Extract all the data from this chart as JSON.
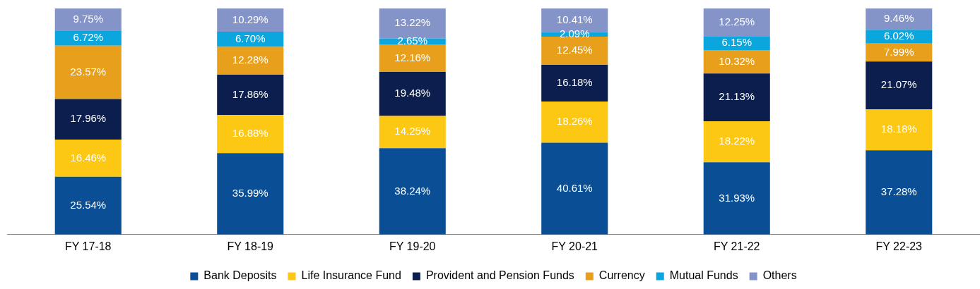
{
  "chart_data": {
    "type": "bar",
    "stacked": true,
    "legend": "bottom",
    "grid": false,
    "categories": [
      "FY 17-18",
      "FY 18-19",
      "FY 19-20",
      "FY 20-21",
      "FY 21-22",
      "FY 22-23"
    ],
    "series": [
      {
        "name": "Bank Deposits",
        "color": "#0a4f96",
        "values": [
          25.54,
          35.99,
          38.24,
          40.61,
          31.93,
          37.28
        ],
        "value_labels": [
          "25.54%",
          "35.99%",
          "38.24%",
          "40.61%",
          "31.93%",
          "37.28%"
        ]
      },
      {
        "name": "Life Insurance Fund",
        "color": "#fdc814",
        "values": [
          16.46,
          16.88,
          14.25,
          18.26,
          18.22,
          18.18
        ],
        "value_labels": [
          "16.46%",
          "16.88%",
          "14.25%",
          "18.26%",
          "18.22%",
          "18.18%"
        ]
      },
      {
        "name": "Provident and Pension Funds",
        "color": "#0c1e4d",
        "values": [
          17.96,
          17.86,
          19.48,
          16.18,
          21.13,
          21.07
        ],
        "value_labels": [
          "17.96%",
          "17.86%",
          "19.48%",
          "16.18%",
          "21.13%",
          "21.07%"
        ]
      },
      {
        "name": "Currency",
        "color": "#e8a01c",
        "values": [
          23.57,
          12.28,
          12.16,
          12.45,
          10.32,
          7.99
        ],
        "value_labels": [
          "23.57%",
          "12.28%",
          "12.16%",
          "12.45%",
          "10.32%",
          "7.99%"
        ]
      },
      {
        "name": "Mutual Funds",
        "color": "#0ba6dd",
        "values": [
          6.72,
          6.7,
          2.65,
          2.09,
          6.15,
          6.02
        ],
        "value_labels": [
          "6.72%",
          "6.70%",
          "2.65%",
          "2.09%",
          "6.15%",
          "6.02%"
        ]
      },
      {
        "name": "Others",
        "color": "#8494c9",
        "values": [
          9.75,
          10.29,
          13.22,
          10.41,
          12.25,
          9.46
        ],
        "value_labels": [
          "9.75%",
          "10.29%",
          "13.22%",
          "10.41%",
          "12.25%",
          "9.46%"
        ]
      }
    ]
  }
}
